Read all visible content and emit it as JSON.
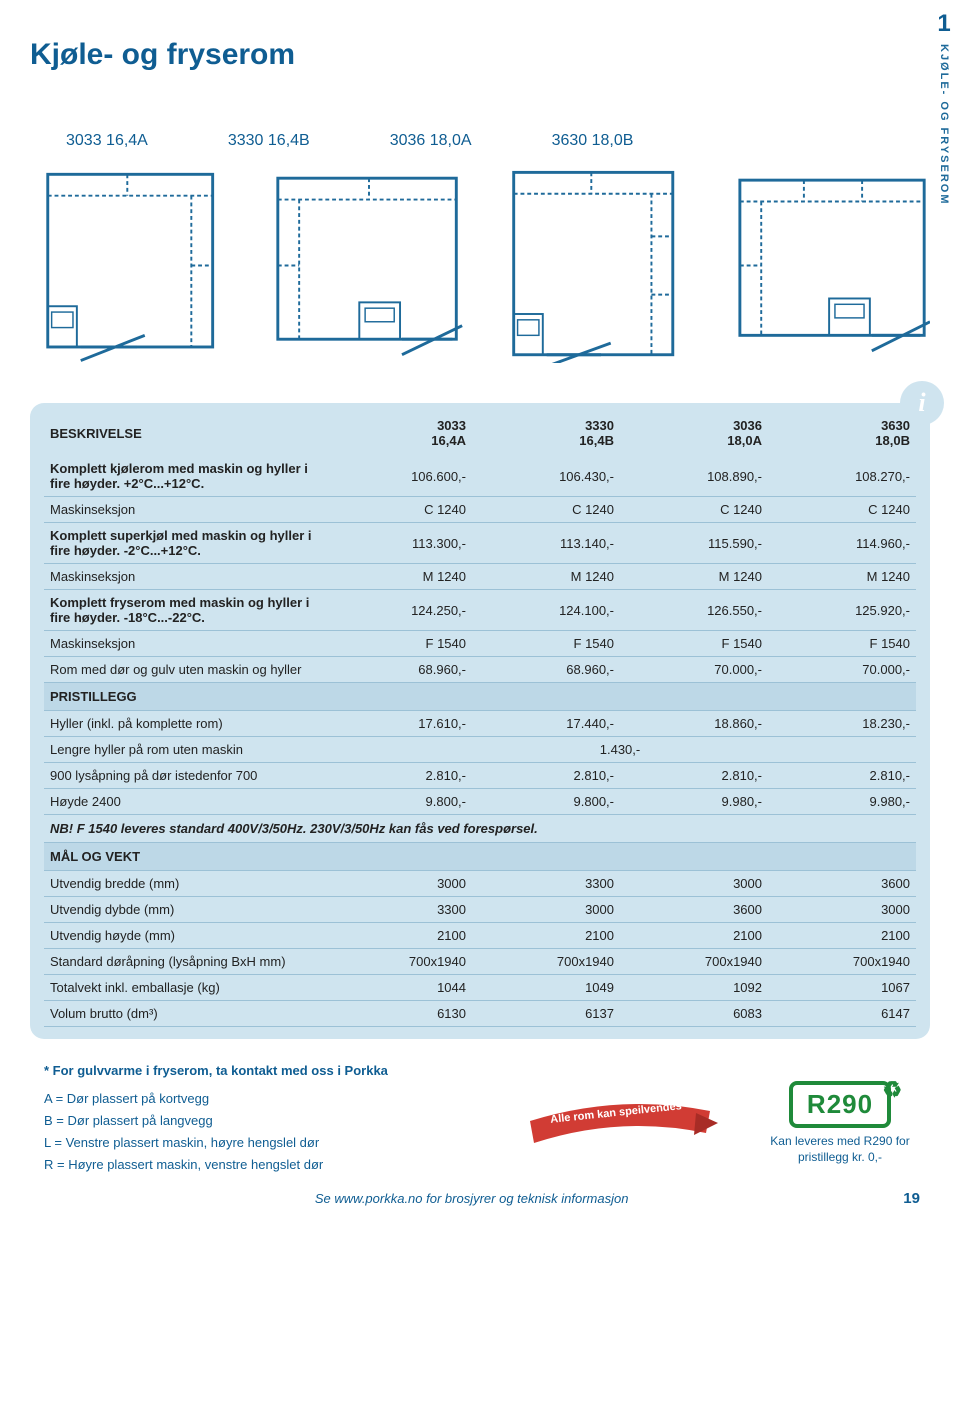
{
  "side_tab": {
    "chapter_num": "1",
    "chapter_title": "KJØLE- OG FRYSEROM"
  },
  "title": "Kjøle- og fryserom",
  "models": [
    "3033 16,4A",
    "3330 16,4B",
    "3036 18,0A",
    "3630 18,0B"
  ],
  "diagram_style": {
    "stroke": "#1e6a9a",
    "stroke_width": 2,
    "fill": "none",
    "dash": "4 3",
    "bg": "#ffffff"
  },
  "table": {
    "head": [
      "BESKRIVELSE",
      "3033\n16,4A",
      "3330\n16,4B",
      "3036\n18,0A",
      "3630\n18,0B"
    ],
    "rows": [
      {
        "bold": true,
        "cells": [
          "Komplett kjølerom med maskin og hyller i fire høyder. +2°C...+12°C.",
          "106.600,-",
          "106.430,-",
          "108.890,-",
          "108.270,-"
        ]
      },
      {
        "cells": [
          "Maskinseksjon",
          "C 1240",
          "C 1240",
          "C 1240",
          "C 1240"
        ]
      },
      {
        "bold": true,
        "cells": [
          "Komplett superkjøl med maskin og hyller i fire høyder. -2°C...+12°C.",
          "113.300,-",
          "113.140,-",
          "115.590,-",
          "114.960,-"
        ]
      },
      {
        "cells": [
          "Maskinseksjon",
          "M 1240",
          "M 1240",
          "M 1240",
          "M 1240"
        ]
      },
      {
        "bold": true,
        "cells": [
          "Komplett fryserom med maskin og hyller i fire høyder. -18°C...-22°C.",
          "124.250,-",
          "124.100,-",
          "126.550,-",
          "125.920,-"
        ]
      },
      {
        "cells": [
          "Maskinseksjon",
          "F 1540",
          "F 1540",
          "F 1540",
          "F 1540"
        ]
      },
      {
        "cells": [
          "Rom med dør og gulv uten maskin og hyller",
          "68.960,-",
          "68.960,-",
          "70.000,-",
          "70.000,-"
        ]
      }
    ],
    "section_pristillegg": "PRISTILLEGG",
    "pristillegg_rows": [
      {
        "cells": [
          "Hyller (inkl. på komplette rom)",
          "17.610,-",
          "17.440,-",
          "18.860,-",
          "18.230,-"
        ]
      },
      {
        "span": true,
        "label": "Lengre hyller på rom uten maskin",
        "value": "1.430,-"
      },
      {
        "cells": [
          "900 lysåpning på dør istedenfor 700",
          "2.810,-",
          "2.810,-",
          "2.810,-",
          "2.810,-"
        ]
      },
      {
        "cells": [
          "Høyde 2400",
          "9.800,-",
          "9.800,-",
          "9.980,-",
          "9.980,-"
        ]
      }
    ],
    "note": "NB! F 1540 leveres standard 400V/3/50Hz. 230V/3/50Hz kan fås ved forespørsel.",
    "section_mal": "MÅL OG VEKT",
    "mal_rows": [
      {
        "cells": [
          "Utvendig bredde (mm)",
          "3000",
          "3300",
          "3000",
          "3600"
        ]
      },
      {
        "cells": [
          "Utvendig dybde (mm)",
          "3300",
          "3000",
          "3600",
          "3000"
        ]
      },
      {
        "cells": [
          "Utvendig høyde (mm)",
          "2100",
          "2100",
          "2100",
          "2100"
        ]
      },
      {
        "cells": [
          "Standard døråpning (lysåpning BxH mm)",
          "700x1940",
          "700x1940",
          "700x1940",
          "700x1940"
        ]
      },
      {
        "cells": [
          "Totalvekt inkl. emballasje (kg)",
          "1044",
          "1049",
          "1092",
          "1067"
        ]
      },
      {
        "cells": [
          "Volum brutto (dm³)",
          "6130",
          "6137",
          "6083",
          "6147"
        ]
      }
    ]
  },
  "footnote": {
    "head": "* For gulvvarme i fryserom, ta kontakt med oss i Porkka",
    "legend": [
      "A = Dør plassert på kortvegg",
      "B = Dør plassert på langvegg",
      "L = Venstre plassert maskin, høyre hengslel dør",
      "R = Høyre plassert maskin, venstre hengslet dør"
    ]
  },
  "ribbon_text": "Alle rom kan speilvendes",
  "r290": {
    "label": "R290",
    "sub": "Kan leveres med R290 for pristillegg kr. 0,-"
  },
  "footer": {
    "link": "Se www.porkka.no for brosjyrer og teknisk informasjon",
    "page": "19"
  },
  "info_badge": "i",
  "colors": {
    "brand": "#0f5d92",
    "panel": "#cfe4ef",
    "panel_border": "#9cc1d6",
    "green": "#1f8a3a",
    "red": "#d13c34"
  }
}
